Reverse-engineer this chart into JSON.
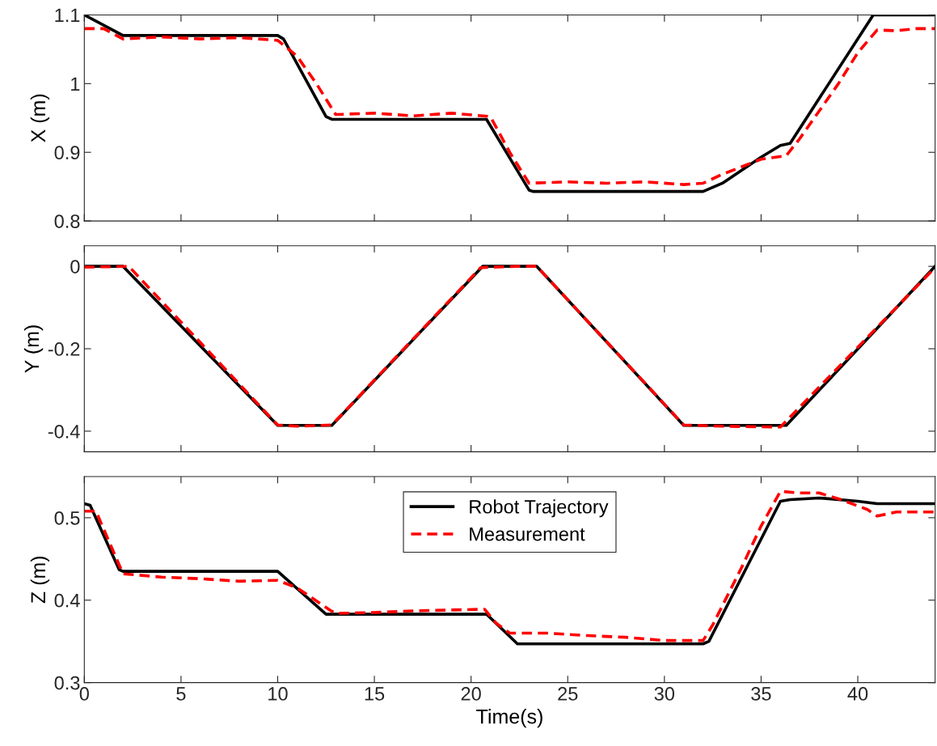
{
  "chart_data": [
    {
      "type": "line",
      "ylabel": "X (m)",
      "xlim": [
        0,
        44
      ],
      "xticks": [
        0,
        5,
        10,
        15,
        20,
        25,
        30,
        35,
        40
      ],
      "ylim": [
        0.8,
        1.1
      ],
      "yticks": [
        0.8,
        0.9,
        1,
        1.1
      ],
      "tick_labels": "y",
      "grid": false,
      "legend": false,
      "series": [
        {
          "color": "#000000",
          "line_style": "solid",
          "x": [
            0,
            2,
            10,
            10.3,
            12.5,
            12.8,
            20.8,
            23,
            23.2,
            32,
            33,
            35,
            36,
            36.5,
            40.8,
            44
          ],
          "values": [
            1.1,
            1.07,
            1.07,
            1.065,
            0.952,
            0.948,
            0.948,
            0.845,
            0.843,
            0.843,
            0.855,
            0.893,
            0.91,
            0.913,
            1.1,
            1.1
          ]
        },
        {
          "color": "#ff0000",
          "line_style": "dashed",
          "x": [
            0,
            1,
            2,
            4,
            6,
            8,
            10,
            11,
            12,
            13,
            15,
            17,
            19,
            21,
            22,
            23,
            25,
            27,
            29,
            31,
            32,
            33,
            35,
            36.3,
            37,
            39,
            40,
            41,
            42,
            43,
            44
          ],
          "values": [
            1.08,
            1.08,
            1.065,
            1.068,
            1.065,
            1.067,
            1.063,
            1.04,
            1.0,
            0.955,
            0.957,
            0.953,
            0.957,
            0.952,
            0.9,
            0.855,
            0.857,
            0.855,
            0.857,
            0.853,
            0.855,
            0.868,
            0.89,
            0.895,
            0.92,
            1.0,
            1.045,
            1.078,
            1.077,
            1.08,
            1.08
          ]
        }
      ]
    },
    {
      "type": "line",
      "ylabel": "Y (m)",
      "xlim": [
        0,
        44
      ],
      "xticks": [
        0,
        5,
        10,
        15,
        20,
        25,
        30,
        35,
        40
      ],
      "ylim": [
        -0.45,
        0.05
      ],
      "yticks": [
        -0.4,
        -0.2,
        0
      ],
      "tick_labels": "y",
      "grid": false,
      "legend": false,
      "series": [
        {
          "color": "#000000",
          "line_style": "solid",
          "x": [
            0,
            2,
            10,
            12.8,
            20.6,
            23.4,
            31,
            36.3,
            44
          ],
          "values": [
            0,
            0,
            -0.386,
            -0.386,
            0,
            0,
            -0.386,
            -0.386,
            0
          ]
        },
        {
          "color": "#ff0000",
          "line_style": "dashed",
          "x": [
            0,
            2.3,
            10,
            11,
            12.8,
            20.5,
            22.5,
            23.4,
            31,
            33,
            36,
            44
          ],
          "values": [
            -0.002,
            0,
            -0.385,
            -0.388,
            -0.385,
            -0.003,
            0,
            0,
            -0.385,
            -0.388,
            -0.39,
            -0.003
          ]
        }
      ]
    },
    {
      "type": "line",
      "xlabel": "Time(s)",
      "ylabel": "Z (m)",
      "xlim": [
        0,
        44
      ],
      "xticks": [
        0,
        5,
        10,
        15,
        20,
        25,
        30,
        35,
        40
      ],
      "ylim": [
        0.3,
        0.55
      ],
      "yticks": [
        0.3,
        0.4,
        0.5
      ],
      "grid": false,
      "legend": "top",
      "series": [
        {
          "name": "Robot Trajectory",
          "color": "#000000",
          "line_style": "solid",
          "x": [
            0,
            0.3,
            1.8,
            2,
            10,
            12.5,
            20.8,
            22.4,
            32,
            32.3,
            36,
            36.5,
            38,
            40,
            41,
            44
          ],
          "values": [
            0.517,
            0.515,
            0.437,
            0.435,
            0.435,
            0.383,
            0.383,
            0.347,
            0.347,
            0.35,
            0.52,
            0.522,
            0.524,
            0.52,
            0.517,
            0.517
          ]
        },
        {
          "name": "Measurement",
          "color": "#ff0000",
          "line_style": "dashed",
          "x": [
            0,
            0.6,
            1.3,
            2,
            4,
            6,
            8,
            10,
            11,
            12.7,
            13,
            15,
            17,
            20.7,
            21.3,
            22,
            24,
            26,
            28,
            30,
            32,
            32.5,
            34,
            35,
            36,
            37,
            38,
            39,
            40.5,
            41,
            42,
            43,
            44
          ],
          "values": [
            0.508,
            0.508,
            0.47,
            0.432,
            0.428,
            0.426,
            0.423,
            0.424,
            0.415,
            0.388,
            0.384,
            0.385,
            0.387,
            0.389,
            0.372,
            0.36,
            0.36,
            0.357,
            0.355,
            0.351,
            0.351,
            0.37,
            0.44,
            0.49,
            0.532,
            0.53,
            0.53,
            0.523,
            0.51,
            0.502,
            0.507,
            0.507,
            0.507
          ]
        }
      ]
    }
  ]
}
